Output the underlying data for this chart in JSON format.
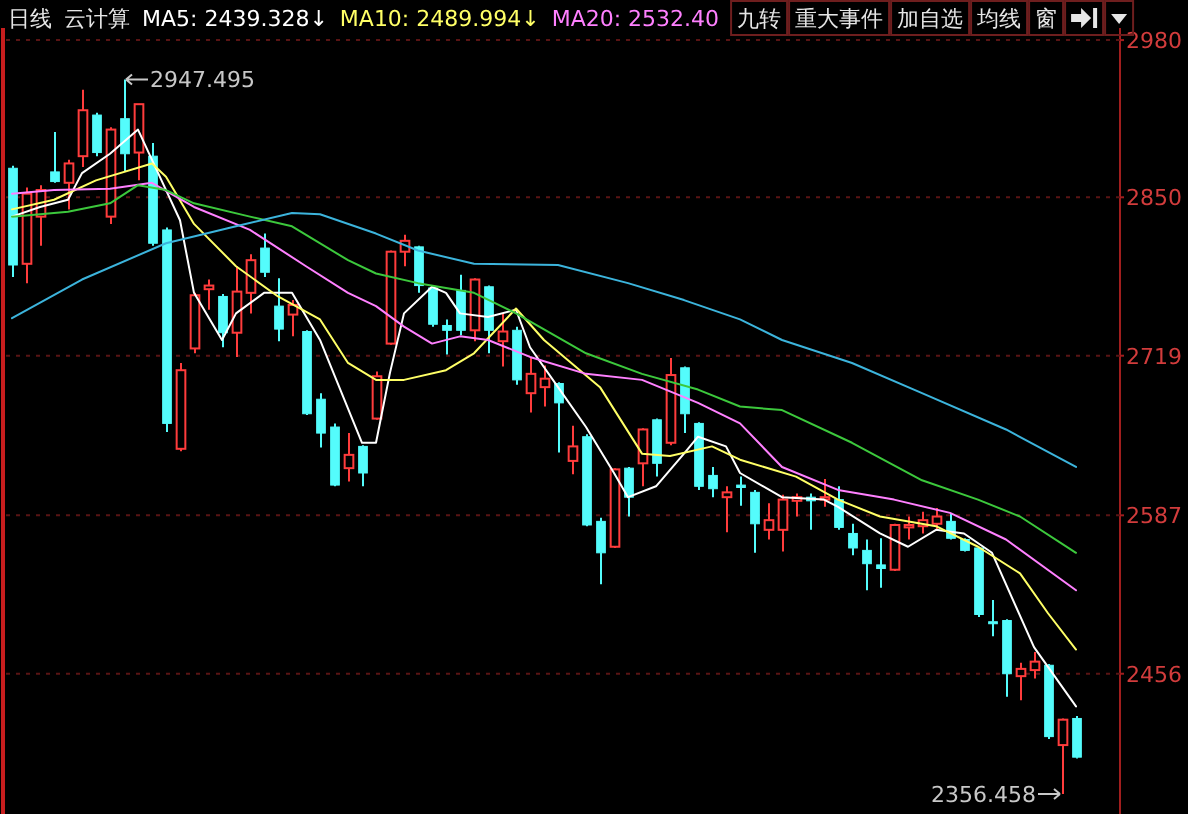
{
  "chart_data": {
    "type": "candlestick",
    "title": "云计算",
    "subtitle": "日线",
    "categories": [
      null,
      null,
      null,
      null,
      null,
      null,
      null,
      null,
      null,
      null,
      null,
      null,
      null,
      null,
      null,
      null,
      null,
      null,
      null,
      null,
      null,
      null,
      null,
      null,
      null,
      null,
      null,
      null,
      null,
      null,
      null,
      null,
      null,
      null,
      null,
      null,
      null,
      null,
      null,
      null,
      null,
      null,
      null,
      null,
      null,
      null,
      null,
      null,
      null,
      null,
      null,
      null,
      null,
      null,
      null,
      null,
      null,
      null,
      null,
      null,
      null,
      null,
      null,
      null,
      null,
      null,
      null,
      null,
      null,
      null,
      null,
      null,
      null,
      null,
      null,
      null,
      null
    ],
    "ohlc": [
      [
        2874,
        2876,
        2784,
        2794
      ],
      [
        2795,
        2858,
        2779,
        2853
      ],
      [
        2834,
        2860,
        2810,
        2856
      ],
      [
        2871,
        2904,
        2862,
        2863
      ],
      [
        2862,
        2881,
        2840,
        2878
      ],
      [
        2884,
        2939,
        2875,
        2922
      ],
      [
        2918,
        2920,
        2884,
        2887
      ],
      [
        2834,
        2908,
        2828,
        2906
      ],
      [
        2915,
        2947.495,
        2871,
        2886
      ],
      [
        2887,
        2927,
        2864,
        2927
      ],
      [
        2884,
        2895,
        2810,
        2812
      ],
      [
        2823,
        2825,
        2656,
        2663
      ],
      [
        2642,
        2713,
        2640,
        2707
      ],
      [
        2725,
        2771,
        2721,
        2769
      ],
      [
        2774,
        2782,
        2757,
        2777
      ],
      [
        2768,
        2770,
        2726,
        2738
      ],
      [
        2738,
        2793,
        2718,
        2772
      ],
      [
        2771,
        2803,
        2754,
        2798
      ],
      [
        2808,
        2820,
        2784,
        2788
      ],
      [
        2760,
        2783,
        2731,
        2741
      ],
      [
        2753,
        2765,
        2735,
        2761
      ],
      [
        2739,
        2740,
        2670,
        2671
      ],
      [
        2683,
        2688,
        2643,
        2655
      ],
      [
        2660,
        2663,
        2611,
        2612
      ],
      [
        2626,
        2655,
        2615,
        2637
      ],
      [
        2644,
        2645,
        2611,
        2622
      ],
      [
        2667,
        2706,
        2666,
        2702
      ],
      [
        2729,
        2806,
        2728,
        2805
      ],
      [
        2805,
        2819,
        2793,
        2814
      ],
      [
        2809,
        2810,
        2771,
        2777
      ],
      [
        2775,
        2777,
        2743,
        2745
      ],
      [
        2744,
        2749,
        2720,
        2740
      ],
      [
        2773,
        2786,
        2736,
        2740
      ],
      [
        2740,
        2783,
        2731,
        2782
      ],
      [
        2776,
        2777,
        2721,
        2740
      ],
      [
        2731,
        2754,
        2710,
        2739
      ],
      [
        2740,
        2743,
        2695,
        2699
      ],
      [
        2688,
        2717,
        2672,
        2704
      ],
      [
        2693,
        2711,
        2677,
        2700
      ],
      [
        2696,
        2697,
        2639,
        2680
      ],
      [
        2632,
        2661,
        2621,
        2644
      ],
      [
        2652,
        2654,
        2578,
        2579
      ],
      [
        2582,
        2585,
        2530,
        2556
      ],
      [
        2561,
        2626,
        2560,
        2625
      ],
      [
        2626,
        2627,
        2586,
        2602
      ],
      [
        2630,
        2659,
        2611,
        2658
      ],
      [
        2666,
        2667,
        2619,
        2630
      ],
      [
        2647,
        2717,
        2645,
        2703
      ],
      [
        2709,
        2710,
        2655,
        2671
      ],
      [
        2663,
        2664,
        2608,
        2611
      ],
      [
        2620,
        2627,
        2602,
        2609
      ],
      [
        2602,
        2611,
        2573,
        2606
      ],
      [
        2612,
        2619,
        2595,
        2610
      ],
      [
        2606,
        2608,
        2556,
        2580
      ],
      [
        2575,
        2597,
        2567,
        2583
      ],
      [
        2575,
        2604,
        2557,
        2600
      ],
      [
        2599,
        2605,
        2586,
        2602
      ],
      [
        2602,
        2605,
        2575,
        2599
      ],
      [
        2600,
        2617,
        2594,
        2602
      ],
      [
        2600,
        2611,
        2575,
        2577
      ],
      [
        2572,
        2580,
        2554,
        2560
      ],
      [
        2558,
        2567,
        2525,
        2547
      ],
      [
        2546,
        2568,
        2527,
        2543
      ],
      [
        2542,
        2580,
        2541,
        2579
      ],
      [
        2577,
        2586,
        2567,
        2579
      ],
      [
        2578,
        2590,
        2572,
        2583
      ],
      [
        2580,
        2593,
        2575,
        2586
      ],
      [
        2582,
        2588,
        2567,
        2568
      ],
      [
        2567,
        2568,
        2557,
        2558
      ],
      [
        2560,
        2561,
        2503,
        2505
      ],
      [
        2499,
        2517,
        2487,
        2498
      ],
      [
        2500,
        2501,
        2437,
        2456
      ],
      [
        2454,
        2465,
        2434,
        2460
      ],
      [
        2459,
        2474,
        2452,
        2466
      ],
      [
        2463,
        2464,
        2402,
        2404
      ],
      [
        2397,
        2419,
        2356.458,
        2418
      ],
      [
        2419,
        2421,
        2386,
        2387
      ]
    ],
    "colors": [
      "#54fcfc",
      "#ff3c3c",
      "#ff3c3c",
      "#54fcfc",
      "#ff3c3c",
      "#ff3c3c",
      "#54fcfc",
      "#ff3c3c",
      "#54fcfc",
      "#ff3c3c",
      "#54fcfc",
      "#54fcfc",
      "#ff3c3c",
      "#ff3c3c",
      "#ff3c3c",
      "#54fcfc",
      "#ff3c3c",
      "#ff3c3c",
      "#54fcfc",
      "#54fcfc",
      "#ff3c3c",
      "#54fcfc",
      "#54fcfc",
      "#54fcfc",
      "#ff3c3c",
      "#54fcfc",
      "#ff3c3c",
      "#ff3c3c",
      "#ff3c3c",
      "#54fcfc",
      "#54fcfc",
      "#54fcfc",
      "#54fcfc",
      "#ff3c3c",
      "#54fcfc",
      "#ff3c3c",
      "#54fcfc",
      "#ff3c3c",
      "#ff3c3c",
      "#54fcfc",
      "#ff3c3c",
      "#54fcfc",
      "#54fcfc",
      "#ff3c3c",
      "#54fcfc",
      "#ff3c3c",
      "#54fcfc",
      "#ff3c3c",
      "#54fcfc",
      "#54fcfc",
      "#54fcfc",
      "#ff3c3c",
      "#54fcfc",
      "#54fcfc",
      "#ff3c3c",
      "#ff3c3c",
      "#ff3c3c",
      "#54fcfc",
      "#ff3c3c",
      "#54fcfc",
      "#54fcfc",
      "#54fcfc",
      "#54fcfc",
      "#ff3c3c",
      "#ff3c3c",
      "#ff3c3c",
      "#ff3c3c",
      "#54fcfc",
      "#54fcfc",
      "#54fcfc",
      "#54fcfc",
      "#54fcfc",
      "#ff3c3c",
      "#ff3c3c",
      "#54fcfc",
      "#ff3c3c",
      "#54fcfc"
    ],
    "series": [
      {
        "name": "MA5: 2439.328↓",
        "type": "line",
        "color": "#ffffff",
        "values": [
          2834,
          null,
          2842,
          null,
          2848,
          2870,
          null,
          2886,
          null,
          2906,
          2881,
          null,
          2831,
          2771,
          null,
          2732,
          2754,
          null,
          2771,
          2771,
          2771,
          null,
          2732,
          null,
          null,
          2647,
          2647,
          2705,
          2754,
          null,
          2776,
          2771,
          2754,
          null,
          2751,
          null,
          2757,
          2726,
          null,
          2693,
          null,
          2660,
          null,
          2622,
          2602,
          null,
          2611,
          null,
          2638,
          2652,
          null,
          2644,
          2622,
          null,
          null,
          2602,
          null,
          null,
          2600,
          2594,
          null,
          null,
          2572,
          null,
          2561,
          null,
          2575,
          null,
          2572,
          null,
          2556,
          null,
          null,
          2478,
          null,
          null,
          2429
        ]
      },
      {
        "name": "MA10: 2489.994↓",
        "type": "line",
        "color": "#ffff66",
        "values": [
          2840,
          null,
          null,
          2848,
          null,
          null,
          2864,
          null,
          null,
          null,
          2878,
          2867,
          null,
          2828,
          null,
          null,
          2793,
          null,
          null,
          2768,
          null,
          null,
          2749,
          null,
          2713,
          null,
          2699,
          null,
          2699,
          null,
          null,
          2707,
          null,
          2721,
          null,
          null,
          2758,
          null,
          2732,
          null,
          null,
          null,
          2693,
          null,
          null,
          2638,
          null,
          2636,
          null,
          null,
          2644,
          null,
          2633,
          null,
          null,
          null,
          2619,
          null,
          null,
          2600,
          null,
          null,
          2586,
          null,
          null,
          null,
          2578,
          null,
          null,
          2561,
          null,
          null,
          2539,
          null,
          2506,
          null,
          2476
        ]
      },
      {
        "name": "MA20: 2532.40",
        "type": "line",
        "color": "#ff80ff",
        "values": [
          2853,
          null,
          null,
          2856,
          null,
          null,
          null,
          2857,
          null,
          null,
          2862,
          null,
          null,
          2842,
          null,
          null,
          null,
          2823,
          null,
          null,
          null,
          2793,
          null,
          null,
          2771,
          null,
          2760,
          null,
          2743,
          null,
          2729,
          null,
          2735,
          null,
          2732,
          null,
          null,
          2718,
          null,
          null,
          null,
          2704,
          null,
          null,
          null,
          2699,
          null,
          null,
          null,
          2680,
          null,
          null,
          2663,
          null,
          null,
          2627,
          null,
          null,
          null,
          2608,
          null,
          null,
          null,
          2600,
          null,
          null,
          null,
          2589,
          null,
          null,
          null,
          2567,
          null,
          null,
          null,
          null,
          2525
        ]
      },
      {
        "type": "line",
        "color": "#3cc83c",
        "values": [
          2834,
          null,
          null,
          null,
          2838,
          null,
          null,
          2845,
          null,
          2860,
          null,
          2856,
          null,
          2845,
          null,
          null,
          null,
          2834,
          null,
          null,
          2826,
          null,
          null,
          null,
          2798,
          null,
          2787,
          null,
          null,
          2779,
          null,
          null,
          null,
          2771,
          null,
          null,
          2754,
          null,
          null,
          null,
          null,
          2721,
          null,
          null,
          null,
          2704,
          null,
          null,
          null,
          2691,
          null,
          null,
          2677,
          null,
          null,
          2674,
          null,
          null,
          null,
          null,
          2647,
          null,
          null,
          null,
          null,
          2616,
          null,
          null,
          null,
          2600,
          null,
          null,
          2586,
          null,
          null,
          null,
          2556
        ]
      },
      {
        "type": "line",
        "color": "#3cb4dc",
        "values": [
          2750,
          null,
          null,
          null,
          null,
          2782,
          null,
          null,
          null,
          null,
          null,
          2812,
          null,
          null,
          null,
          null,
          2826,
          null,
          null,
          null,
          2837,
          null,
          2836,
          null,
          null,
          null,
          2820,
          null,
          null,
          2806,
          null,
          null,
          null,
          2795,
          null,
          null,
          null,
          null,
          null,
          2794,
          null,
          null,
          null,
          null,
          2779,
          null,
          null,
          null,
          2765,
          null,
          null,
          null,
          2749,
          null,
          null,
          2732,
          null,
          null,
          null,
          null,
          2713,
          null,
          null,
          null,
          null,
          2688,
          null,
          null,
          null,
          null,
          null,
          2658,
          null,
          null,
          null,
          null,
          2627
        ]
      }
    ],
    "ylim": [
      2340,
      2990
    ],
    "yticks": [
      2456,
      2587,
      2719,
      2850,
      2980
    ],
    "grid": "y",
    "tick_labels": "y",
    "annotations": [
      "2947.495",
      "2356.458",
      "九转",
      "重大事件",
      "加自选",
      "均线",
      "窗"
    ]
  }
}
